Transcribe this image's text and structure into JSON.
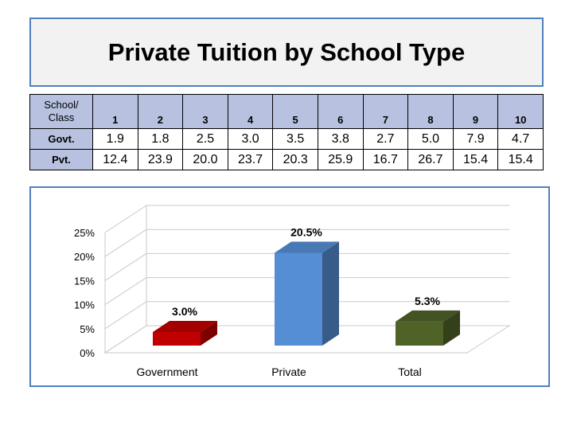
{
  "title": "Private Tuition by School Type",
  "table": {
    "corner_line1": "School/",
    "corner_line2": "Class",
    "columns": [
      "1",
      "2",
      "3",
      "4",
      "5",
      "6",
      "7",
      "8",
      "9",
      "10"
    ],
    "rows": [
      {
        "label": "Govt.",
        "values": [
          "1.9",
          "1.8",
          "2.5",
          "3.0",
          "3.5",
          "3.8",
          "2.7",
          "5.0",
          "7.9",
          "4.7"
        ]
      },
      {
        "label": "Pvt.",
        "values": [
          "12.4",
          "23.9",
          "20.0",
          "23.7",
          "20.3",
          "25.9",
          "16.7",
          "26.7",
          "15.4",
          "15.4"
        ]
      }
    ]
  },
  "chart_data": {
    "type": "bar",
    "categories": [
      "Government",
      "Private",
      "Total"
    ],
    "values": [
      3.0,
      20.5,
      5.3
    ],
    "data_labels": [
      "3.0%",
      "20.5%",
      "5.3%"
    ],
    "colors": [
      "#c00000",
      "#558ed5",
      "#4f6228"
    ],
    "y_ticks": [
      "0%",
      "5%",
      "10%",
      "15%",
      "20%",
      "25%"
    ],
    "ylim": [
      0,
      25
    ],
    "grid": true,
    "style": "3d"
  }
}
